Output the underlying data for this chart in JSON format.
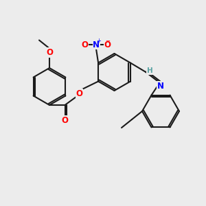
{
  "bg_color": "#ececec",
  "bond_color": "#1a1a1a",
  "bond_width": 1.5,
  "atom_colors": {
    "O": "#ff0000",
    "N": "#0000ff",
    "C": "#1a1a1a",
    "H": "#5ba3a3"
  },
  "font_size": 7.5,
  "font_size_small": 6.5
}
